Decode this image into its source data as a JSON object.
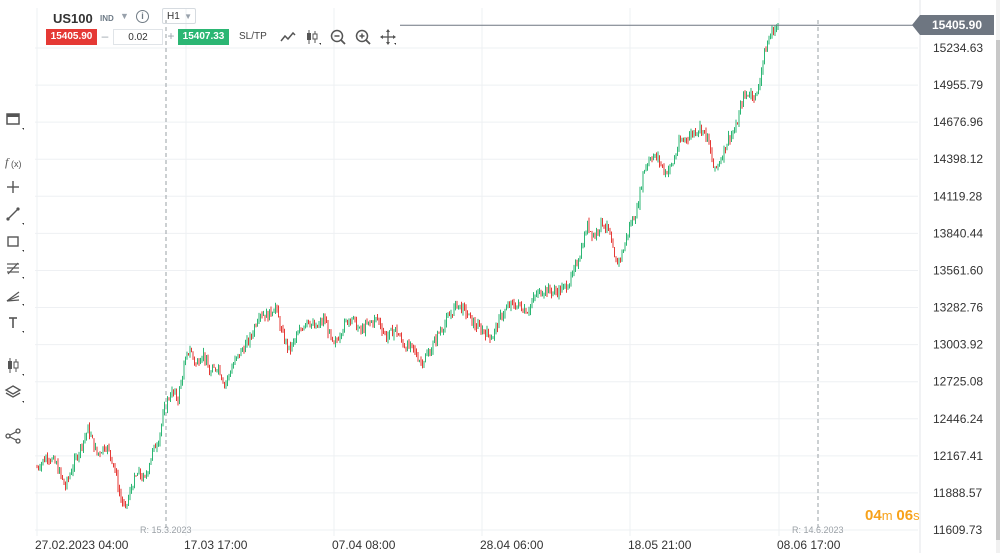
{
  "header": {
    "symbol": "US100",
    "instrument_type": "IND",
    "timeframe": "H1",
    "sell_price": "15405.90",
    "quantity": "0.02",
    "buy_price": "15407.33",
    "sltp_label": "SL/TP",
    "minus": "–",
    "plus": "+",
    "info": "i"
  },
  "icons": {
    "top": [
      "line-chart-icon",
      "candlestick-icon",
      "zoom-out-icon",
      "zoom-in-icon",
      "move-icon"
    ],
    "left": [
      "window-icon",
      "indicators-icon",
      "crosshair-icon",
      "trendline-icon",
      "rectangle-icon",
      "fibonacci-icon",
      "pitchfork-icon",
      "text-icon",
      "chart-type-icon",
      "layers-icon",
      "share-icon"
    ]
  },
  "price_tag": "15405.90",
  "countdown": {
    "minutes": "04",
    "minutes_unit": "m",
    "seconds": "06",
    "seconds_unit": "s"
  },
  "colors": {
    "up": "#2bb673",
    "down": "#e53935",
    "grid": "#eef0f3",
    "price_line": "#6e7681",
    "countdown": "#f7a21b"
  },
  "chart_data": {
    "type": "candlestick",
    "symbol": "US100",
    "timeframe": "H1",
    "ylim": [
      11609.73,
      15513.5
    ],
    "y_ticks": [
      "15234.63",
      "14955.79",
      "14676.96",
      "14398.12",
      "14119.28",
      "13840.44",
      "13561.60",
      "13282.76",
      "13003.92",
      "12725.08",
      "12446.24",
      "12167.41",
      "11888.57",
      "11609.73"
    ],
    "x_ticks": [
      "27.02.2023 04:00",
      "17.03 17:00",
      "07.04 08:00",
      "28.04 06:00",
      "18.05 21:00",
      "08.06 17:00"
    ],
    "markers": [
      {
        "label": "R: 15.3.2023"
      },
      {
        "label": "R: 14.6.2023"
      }
    ],
    "last_price": 15405.9,
    "close_path": [
      [
        0.0,
        12080
      ],
      [
        0.012,
        12170
      ],
      [
        0.022,
        12100
      ],
      [
        0.032,
        11930
      ],
      [
        0.04,
        12080
      ],
      [
        0.048,
        12210
      ],
      [
        0.058,
        12370
      ],
      [
        0.068,
        12180
      ],
      [
        0.078,
        12250
      ],
      [
        0.087,
        12110
      ],
      [
        0.094,
        11870
      ],
      [
        0.1,
        11760
      ],
      [
        0.108,
        11950
      ],
      [
        0.115,
        12040
      ],
      [
        0.122,
        11980
      ],
      [
        0.13,
        12180
      ],
      [
        0.138,
        12300
      ],
      [
        0.145,
        12530
      ],
      [
        0.152,
        12650
      ],
      [
        0.16,
        12600
      ],
      [
        0.166,
        12820
      ],
      [
        0.173,
        12980
      ],
      [
        0.18,
        12850
      ],
      [
        0.188,
        12950
      ],
      [
        0.196,
        12780
      ],
      [
        0.205,
        12850
      ],
      [
        0.213,
        12700
      ],
      [
        0.222,
        12850
      ],
      [
        0.232,
        12960
      ],
      [
        0.242,
        13050
      ],
      [
        0.252,
        13250
      ],
      [
        0.262,
        13220
      ],
      [
        0.27,
        13300
      ],
      [
        0.278,
        13080
      ],
      [
        0.286,
        12960
      ],
      [
        0.296,
        13080
      ],
      [
        0.306,
        13200
      ],
      [
        0.316,
        13120
      ],
      [
        0.326,
        13200
      ],
      [
        0.336,
        12980
      ],
      [
        0.346,
        13130
      ],
      [
        0.356,
        13220
      ],
      [
        0.366,
        13100
      ],
      [
        0.376,
        13160
      ],
      [
        0.386,
        13200
      ],
      [
        0.396,
        13060
      ],
      [
        0.406,
        13120
      ],
      [
        0.416,
        13000
      ],
      [
        0.426,
        12970
      ],
      [
        0.436,
        12870
      ],
      [
        0.446,
        12960
      ],
      [
        0.456,
        13100
      ],
      [
        0.466,
        13200
      ],
      [
        0.476,
        13310
      ],
      [
        0.486,
        13250
      ],
      [
        0.496,
        13150
      ],
      [
        0.506,
        13110
      ],
      [
        0.516,
        13060
      ],
      [
        0.526,
        13220
      ],
      [
        0.536,
        13300
      ],
      [
        0.546,
        13300
      ],
      [
        0.556,
        13260
      ],
      [
        0.566,
        13380
      ],
      [
        0.576,
        13420
      ],
      [
        0.586,
        13400
      ],
      [
        0.596,
        13420
      ],
      [
        0.606,
        13500
      ],
      [
        0.616,
        13700
      ],
      [
        0.624,
        13900
      ],
      [
        0.632,
        13820
      ],
      [
        0.64,
        13930
      ],
      [
        0.648,
        13860
      ],
      [
        0.656,
        13600
      ],
      [
        0.664,
        13700
      ],
      [
        0.672,
        13900
      ],
      [
        0.68,
        14010
      ],
      [
        0.688,
        14320
      ],
      [
        0.696,
        14430
      ],
      [
        0.704,
        14400
      ],
      [
        0.712,
        14300
      ],
      [
        0.72,
        14350
      ],
      [
        0.728,
        14520
      ],
      [
        0.736,
        14560
      ],
      [
        0.744,
        14600
      ],
      [
        0.752,
        14640
      ],
      [
        0.76,
        14560
      ],
      [
        0.768,
        14300
      ],
      [
        0.776,
        14420
      ],
      [
        0.784,
        14560
      ],
      [
        0.792,
        14620
      ],
      [
        0.8,
        14860
      ],
      [
        0.808,
        14900
      ],
      [
        0.816,
        14870
      ],
      [
        0.824,
        15180
      ],
      [
        0.832,
        15350
      ],
      [
        0.84,
        15405.9
      ]
    ]
  }
}
